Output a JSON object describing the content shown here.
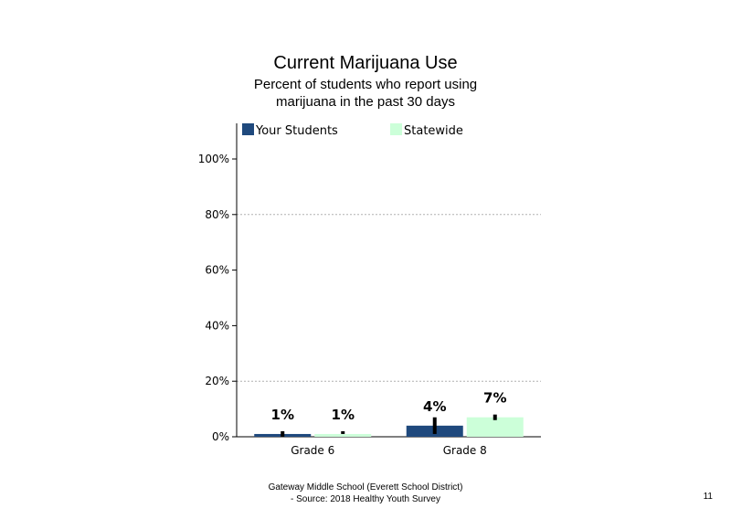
{
  "chart_data": {
    "type": "bar",
    "title": "Current  Marijuana  Use",
    "subtitle": "Percent of students who report using marijuana in the past 30 days",
    "categories": [
      "Grade 6",
      "Grade 8"
    ],
    "series": [
      {
        "name": "Your Students",
        "color": "#1f497d",
        "values": [
          1,
          4
        ],
        "labels": [
          "1%",
          "4%"
        ],
        "error": [
          [
            0,
            2
          ],
          [
            1,
            7
          ]
        ]
      },
      {
        "name": "Statewide",
        "color": "#ccffd9",
        "values": [
          1,
          7
        ],
        "labels": [
          "1%",
          "7%"
        ],
        "error": [
          [
            1,
            2
          ],
          [
            6,
            8
          ]
        ]
      }
    ],
    "yticks": [
      "0%",
      "20%",
      "40%",
      "60%",
      "80%",
      "100%"
    ],
    "ylim": [
      0,
      100
    ],
    "grid": true,
    "legend": "top"
  },
  "footer": {
    "line1": "Gateway Middle  School  (Everett School District)",
    "line2": "- Source: 2018 Healthy  Youth Survey"
  },
  "page_number": "11"
}
